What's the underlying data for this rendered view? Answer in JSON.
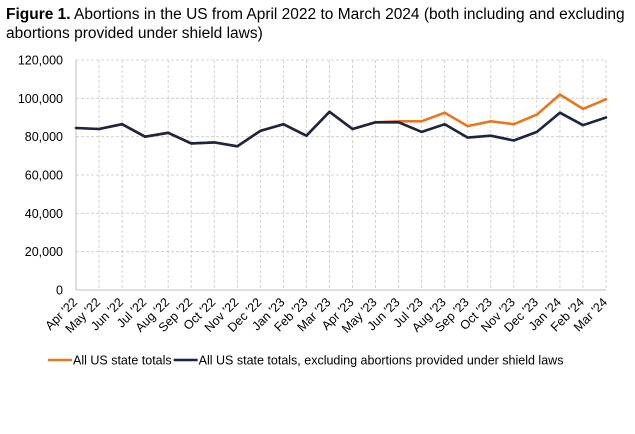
{
  "title": {
    "lead": "Figure 1.",
    "text": " Abortions in the US from April 2022 to March 2024 (both including and excluding abortions provided under shield laws)"
  },
  "chart_data": {
    "type": "line",
    "title": "Figure 1. Abortions in the US from April 2022 to March 2024 (both including and excluding abortions provided under shield laws)",
    "xlabel": "",
    "ylabel": "",
    "ylim": [
      0,
      120000
    ],
    "yticks": [
      "0",
      "20,000",
      "40,000",
      "60,000",
      "80,000",
      "100,000",
      "120,000"
    ],
    "grid": true,
    "legend_position": "bottom",
    "categories": [
      "Apr '22",
      "May '22",
      "Jun '22",
      "Jul '22",
      "Aug '22",
      "Sep '22",
      "Oct '22",
      "Nov '22",
      "Dec '22",
      "Jan '23",
      "Feb '23",
      "Mar '23",
      "Apr '23",
      "May '23",
      "Jun '23",
      "Jul '23",
      "Aug '23",
      "Sep '23",
      "Oct '23",
      "Nov '23",
      "Dec '23",
      "Jan '24",
      "Feb '24",
      "Mar '24"
    ],
    "series": [
      {
        "name": "All US state totals",
        "color": "#E87722",
        "values": [
          84500,
          84000,
          86500,
          80000,
          82000,
          76500,
          77000,
          75000,
          83000,
          86500,
          80500,
          93000,
          84000,
          87500,
          88000,
          88000,
          92500,
          85500,
          88000,
          86500,
          91500,
          102000,
          94500,
          99500
        ]
      },
      {
        "name": "All US state totals, excluding abortions provided under shield laws",
        "color": "#1C2540",
        "values": [
          84500,
          84000,
          86500,
          80000,
          82000,
          76500,
          77000,
          75000,
          83000,
          86500,
          80500,
          93000,
          84000,
          87500,
          87500,
          82500,
          86500,
          79500,
          80500,
          78000,
          82500,
          92500,
          86000,
          90000
        ]
      }
    ]
  }
}
